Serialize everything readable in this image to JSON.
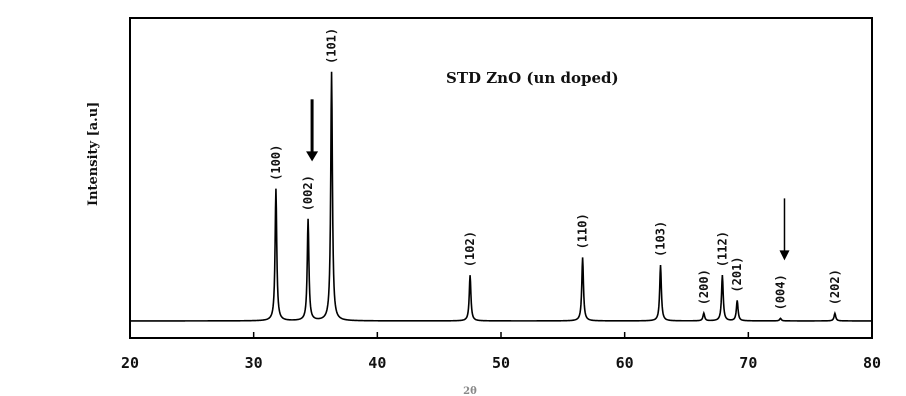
{
  "chart_data": {
    "type": "line",
    "title": "STD ZnO (un doped)",
    "ylabel": "Intensity [a.u]",
    "xlabel": "2θ",
    "xlim": [
      20,
      80
    ],
    "x_ticks": [
      "20",
      "30",
      "40",
      "50",
      "60",
      "70",
      "80"
    ],
    "baseline_intensity": 0.02,
    "peaks": [
      {
        "hkl": "(100)",
        "x": 31.8,
        "intensity": 0.52
      },
      {
        "hkl": "(002)",
        "x": 34.4,
        "intensity": 0.4
      },
      {
        "hkl": "(101)",
        "x": 36.3,
        "intensity": 0.98
      },
      {
        "hkl": "(102)",
        "x": 47.5,
        "intensity": 0.18
      },
      {
        "hkl": "(110)",
        "x": 56.6,
        "intensity": 0.25
      },
      {
        "hkl": "(103)",
        "x": 62.9,
        "intensity": 0.22
      },
      {
        "hkl": "(200)",
        "x": 66.4,
        "intensity": 0.03
      },
      {
        "hkl": "(112)",
        "x": 67.9,
        "intensity": 0.18
      },
      {
        "hkl": "(201)",
        "x": 69.1,
        "intensity": 0.08
      },
      {
        "hkl": "(004)",
        "x": 72.6,
        "intensity": 0.01
      },
      {
        "hkl": "(202)",
        "x": 77.0,
        "intensity": 0.03
      }
    ],
    "arrow_markers": [
      "(002)",
      "(004)"
    ]
  }
}
